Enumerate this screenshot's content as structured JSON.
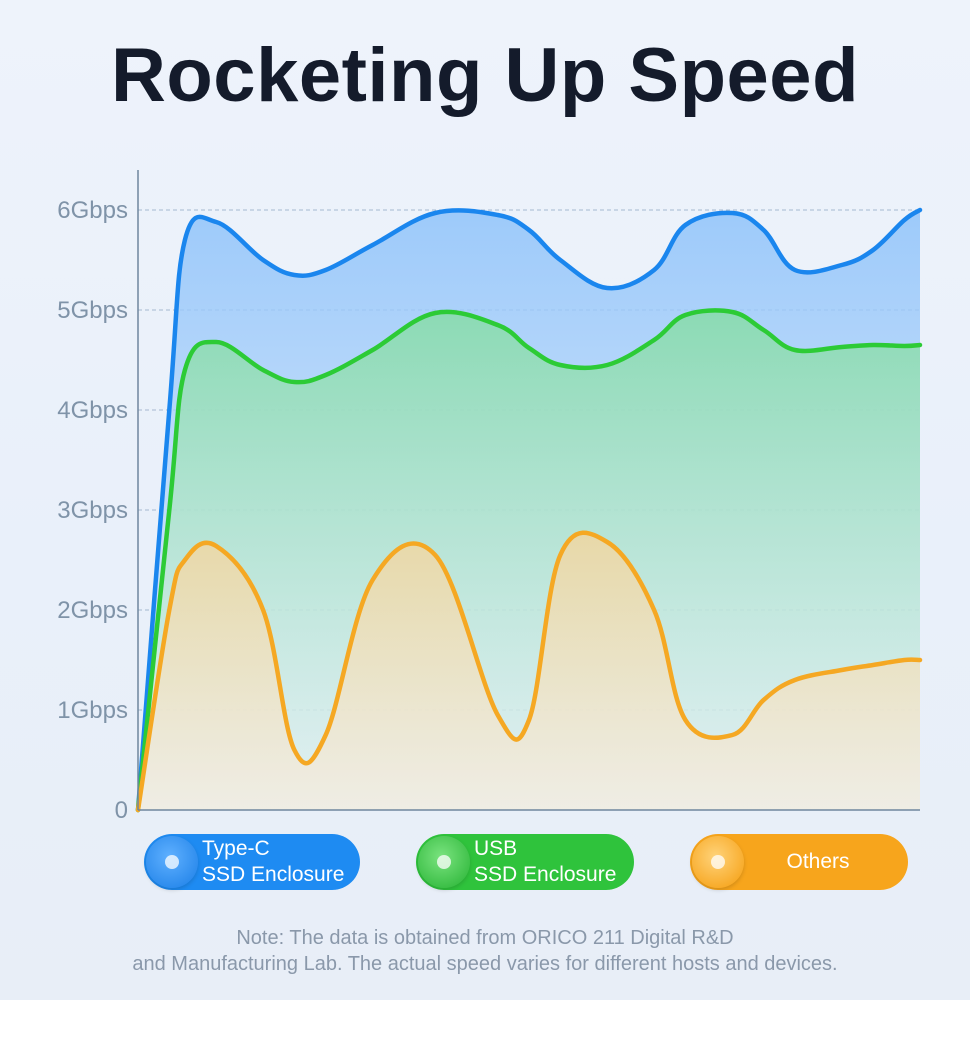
{
  "title": "Rocketing Up Speed",
  "chart_data": {
    "type": "area",
    "title": "Rocketing Up Speed",
    "xlabel": "",
    "ylabel": "",
    "y_ticks": [
      "0",
      "1Gbps",
      "2Gbps",
      "3Gbps",
      "4Gbps",
      "5Gbps",
      "6Gbps"
    ],
    "ylim": [
      0,
      6
    ],
    "grid": true,
    "legend_position": "bottom",
    "x": [
      0,
      0.4,
      0.6,
      1,
      1.6,
      2,
      2.4,
      3,
      3.8,
      4.6,
      5,
      5.4,
      6,
      6.6,
      7,
      7.6,
      8,
      8.4,
      9,
      9.4,
      9.8,
      10
    ],
    "series": [
      {
        "name": "Type-C SSD Enclosure",
        "color": "#1a86ee",
        "values": [
          0,
          4.0,
          5.7,
          5.88,
          5.5,
          5.35,
          5.4,
          5.65,
          5.97,
          5.95,
          5.8,
          5.5,
          5.22,
          5.4,
          5.85,
          5.97,
          5.8,
          5.4,
          5.45,
          5.6,
          5.9,
          6.0
        ]
      },
      {
        "name": "USB SSD Enclosure",
        "color": "#2ccb36",
        "values": [
          0,
          3.0,
          4.4,
          4.68,
          4.4,
          4.28,
          4.35,
          4.6,
          4.97,
          4.85,
          4.62,
          4.45,
          4.45,
          4.7,
          4.95,
          4.98,
          4.8,
          4.6,
          4.63,
          4.65,
          4.64,
          4.65
        ]
      },
      {
        "name": "Others",
        "color": "#f5a823",
        "values": [
          0,
          2.0,
          2.5,
          2.64,
          2.0,
          0.6,
          0.75,
          2.3,
          2.55,
          0.95,
          0.9,
          2.55,
          2.68,
          2.0,
          0.9,
          0.75,
          1.1,
          1.3,
          1.4,
          1.45,
          1.5,
          1.5
        ]
      }
    ]
  },
  "legend": {
    "typec": {
      "line1": "Type-C",
      "line2": "SSD Enclosure"
    },
    "usb": {
      "line1": "USB",
      "line2": "SSD Enclosure"
    },
    "others": {
      "line1": "Others"
    }
  },
  "note": {
    "line1": "Note: The data is obtained from ORICO 211 Digital R&D",
    "line2": "and Manufacturing Lab. The actual speed varies for different hosts and devices."
  }
}
